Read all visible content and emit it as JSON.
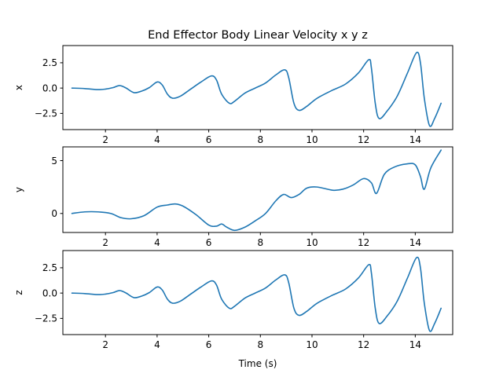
{
  "chart_data": {
    "type": "line",
    "title": "End Effector Body Linear Velocity x y z",
    "xlabel": "Time (s)",
    "xlim": [
      0.35,
      15.45
    ],
    "x_ticks": [
      2,
      4,
      6,
      8,
      10,
      12,
      14
    ],
    "grid": false,
    "line_color": "#1f77b4",
    "subplots": [
      {
        "ylabel": "x",
        "ylim": [
          -4.1,
          4.2
        ],
        "y_ticks": [
          2.5,
          0.0,
          -2.5
        ],
        "y_tick_labels": [
          "2.5",
          "0.0",
          "−2.5"
        ],
        "x": [
          0.7,
          1.2,
          1.7,
          2.0,
          2.3,
          2.55,
          2.8,
          3.1,
          3.4,
          3.7,
          4.0,
          4.2,
          4.4,
          4.6,
          4.9,
          5.3,
          5.7,
          6.1,
          6.3,
          6.5,
          6.8,
          7.0,
          7.4,
          7.8,
          8.2,
          8.6,
          8.95,
          9.1,
          9.3,
          9.5,
          9.8,
          10.2,
          10.8,
          11.3,
          11.8,
          12.2,
          12.3,
          12.45,
          12.6,
          12.9,
          13.3,
          13.7,
          14.05,
          14.2,
          14.35,
          14.55,
          14.75,
          15.0
        ],
        "y": [
          0.0,
          -0.05,
          -0.15,
          -0.1,
          0.05,
          0.25,
          0.0,
          -0.45,
          -0.3,
          0.05,
          0.6,
          0.3,
          -0.6,
          -1.0,
          -0.8,
          -0.1,
          0.6,
          1.2,
          0.8,
          -0.6,
          -1.5,
          -1.3,
          -0.5,
          0.0,
          0.5,
          1.3,
          1.8,
          1.0,
          -1.5,
          -2.2,
          -1.8,
          -1.0,
          -0.2,
          0.4,
          1.5,
          2.8,
          2.0,
          -1.5,
          -3.0,
          -2.3,
          -0.8,
          1.5,
          3.5,
          2.5,
          -1.0,
          -3.7,
          -3.0,
          -1.5
        ]
      },
      {
        "ylabel": "y",
        "ylim": [
          -1.8,
          6.3
        ],
        "y_ticks": [
          5,
          0
        ],
        "y_tick_labels": [
          "5",
          "0"
        ],
        "x": [
          0.7,
          1.2,
          1.7,
          2.2,
          2.6,
          3.0,
          3.5,
          4.0,
          4.4,
          4.7,
          5.0,
          5.5,
          6.0,
          6.3,
          6.5,
          6.7,
          7.0,
          7.4,
          7.8,
          8.2,
          8.6,
          8.9,
          9.2,
          9.5,
          9.8,
          10.2,
          10.8,
          11.2,
          11.6,
          12.0,
          12.3,
          12.5,
          12.8,
          13.2,
          13.7,
          14.0,
          14.2,
          14.35,
          14.6,
          15.0
        ],
        "y": [
          0.0,
          0.15,
          0.15,
          0.0,
          -0.4,
          -0.5,
          -0.2,
          0.6,
          0.8,
          0.9,
          0.7,
          -0.1,
          -1.1,
          -1.2,
          -1.0,
          -1.3,
          -1.6,
          -1.3,
          -0.7,
          0.0,
          1.2,
          1.8,
          1.5,
          1.8,
          2.4,
          2.5,
          2.2,
          2.3,
          2.7,
          3.3,
          2.9,
          1.9,
          3.7,
          4.4,
          4.7,
          4.6,
          3.5,
          2.3,
          4.3,
          6.0
        ]
      },
      {
        "ylabel": "z",
        "ylim": [
          -4.1,
          4.2
        ],
        "y_ticks": [
          2.5,
          0.0,
          -2.5
        ],
        "y_tick_labels": [
          "2.5",
          "0.0",
          "−2.5"
        ],
        "x": [
          0.7,
          1.2,
          1.7,
          2.0,
          2.3,
          2.55,
          2.8,
          3.1,
          3.4,
          3.7,
          4.0,
          4.2,
          4.4,
          4.6,
          4.9,
          5.3,
          5.7,
          6.1,
          6.3,
          6.5,
          6.8,
          7.0,
          7.4,
          7.8,
          8.2,
          8.6,
          8.95,
          9.1,
          9.3,
          9.5,
          9.8,
          10.2,
          10.8,
          11.3,
          11.8,
          12.2,
          12.3,
          12.45,
          12.6,
          12.9,
          13.3,
          13.7,
          14.05,
          14.2,
          14.35,
          14.55,
          14.75,
          15.0
        ],
        "y": [
          0.0,
          -0.05,
          -0.15,
          -0.1,
          0.05,
          0.25,
          0.0,
          -0.45,
          -0.3,
          0.05,
          0.6,
          0.3,
          -0.6,
          -1.0,
          -0.8,
          -0.1,
          0.6,
          1.2,
          0.8,
          -0.6,
          -1.5,
          -1.3,
          -0.5,
          0.0,
          0.5,
          1.3,
          1.8,
          1.0,
          -1.5,
          -2.2,
          -1.8,
          -1.0,
          -0.2,
          0.4,
          1.5,
          2.8,
          2.0,
          -1.5,
          -3.0,
          -2.3,
          -0.8,
          1.5,
          3.5,
          2.5,
          -1.0,
          -3.7,
          -3.0,
          -1.5
        ]
      }
    ]
  }
}
